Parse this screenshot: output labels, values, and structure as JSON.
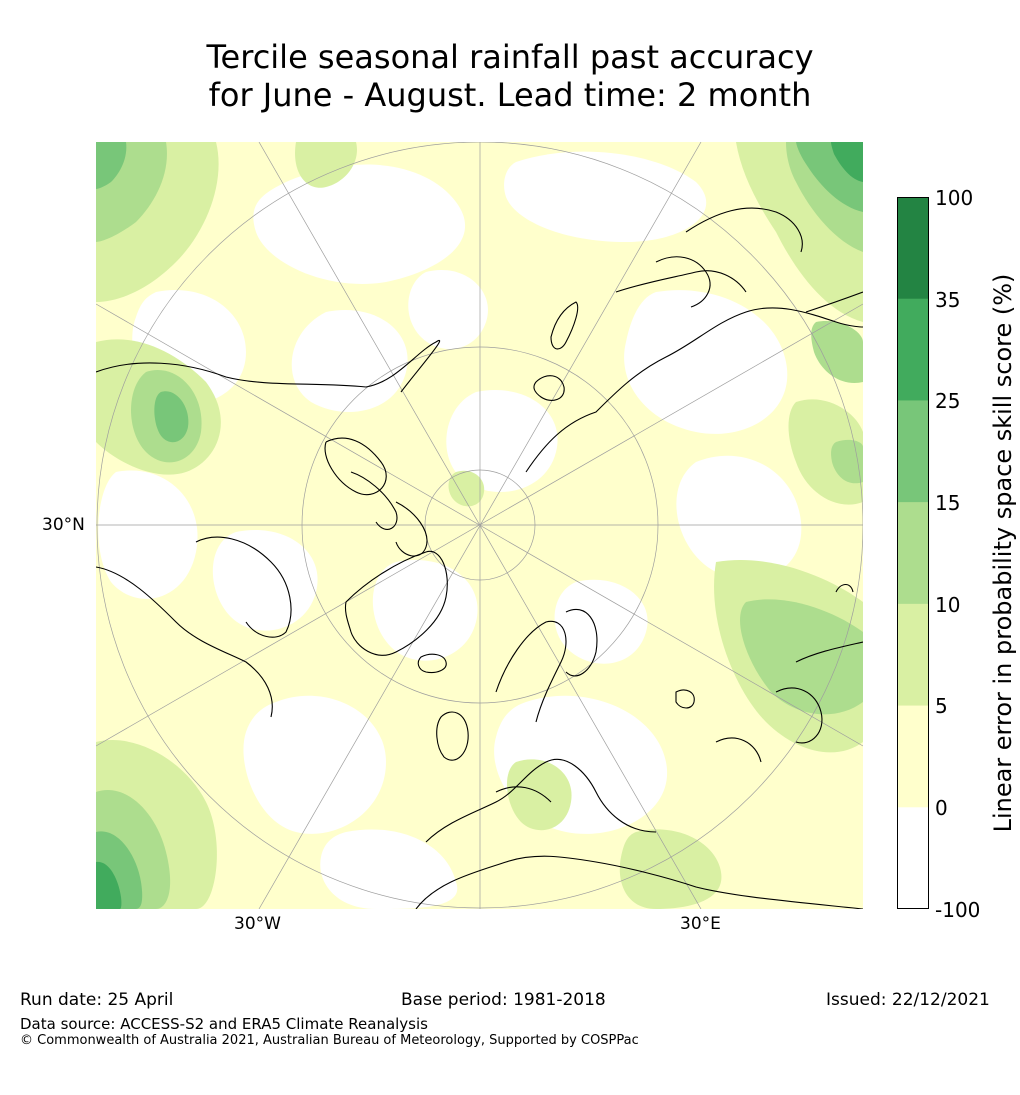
{
  "title": {
    "line1": "Tercile seasonal rainfall past accuracy",
    "line2": "for June - August. Lead time: 2 month"
  },
  "map": {
    "projection": "north-polar-stereographic",
    "lon_labels": [
      "30°W",
      "30°E"
    ],
    "lat_label": "30°N",
    "palette": {
      "neg": "#ffffff",
      "c0_5": "#ffffcc",
      "c5_10": "#d9f0a3",
      "c10_15": "#addd8e",
      "c15_25": "#78c679",
      "c25_35": "#41ab5d",
      "c35_100": "#238443",
      "coast": "#000000",
      "grid": "#9e9e9e"
    }
  },
  "colorbar": {
    "title": "Linear error in probability space skill score (%)",
    "ticks": [
      "100",
      "35",
      "25",
      "15",
      "10",
      "5",
      "0",
      "-100"
    ],
    "colors": [
      "#238443",
      "#41ab5d",
      "#78c679",
      "#addd8e",
      "#d9f0a3",
      "#ffffcc",
      "#ffffff"
    ]
  },
  "footer": {
    "run_date": "Run date: 25 April",
    "base_period": "Base period: 1981-2018",
    "issued": "Issued: 22/12/2021",
    "data_source": "Data source: ACCESS-S2 and ERA5 Climate Reanalysis",
    "copyright": "© Commonwealth of Australia 2021, Australian Bureau of Meteorology, Supported by COSPPac"
  }
}
